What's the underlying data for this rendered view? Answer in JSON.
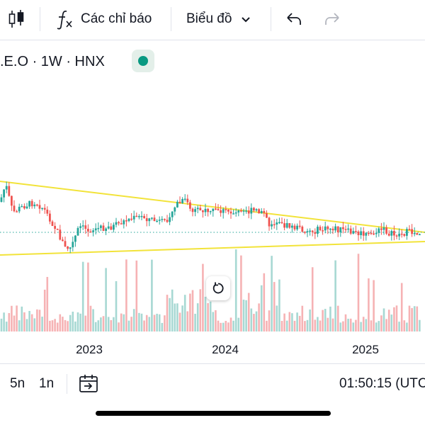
{
  "toolbar": {
    "candle_icon": "candlestick-icon",
    "indicators_icon": "function-fx-icon",
    "indicators_label": "Các chỉ báo",
    "chart_type_label": "Biểu đồ",
    "chart_type_icon": "chevron-down-icon",
    "undo_icon": "undo-icon",
    "redo_icon": "redo-icon"
  },
  "legend": {
    "symbol_text": ".E.O · 1W · HNX",
    "status_icon": "market-open-dot-icon",
    "status_color": "#089981"
  },
  "colors": {
    "up": "#26a69a",
    "down": "#ef5350",
    "volume_up": "#a7d8d3",
    "volume_down": "#f6b2b4",
    "trendline": "#f2e33a",
    "price_line": "#26a69a"
  },
  "chart_data": {
    "type": "candlestick",
    "x_axis": {
      "tick_labels": [
        "2023",
        "2024",
        "2025"
      ]
    },
    "trendlines": "two converging lines (triangle)",
    "price_line": "dotted horizontal at last price"
  },
  "reset_icon": "reset-chart-icon",
  "bottom": {
    "range_5y": "5n",
    "range_1y": "1n",
    "goto_icon": "calendar-goto-icon",
    "time": "01:50:15 (UTC"
  }
}
